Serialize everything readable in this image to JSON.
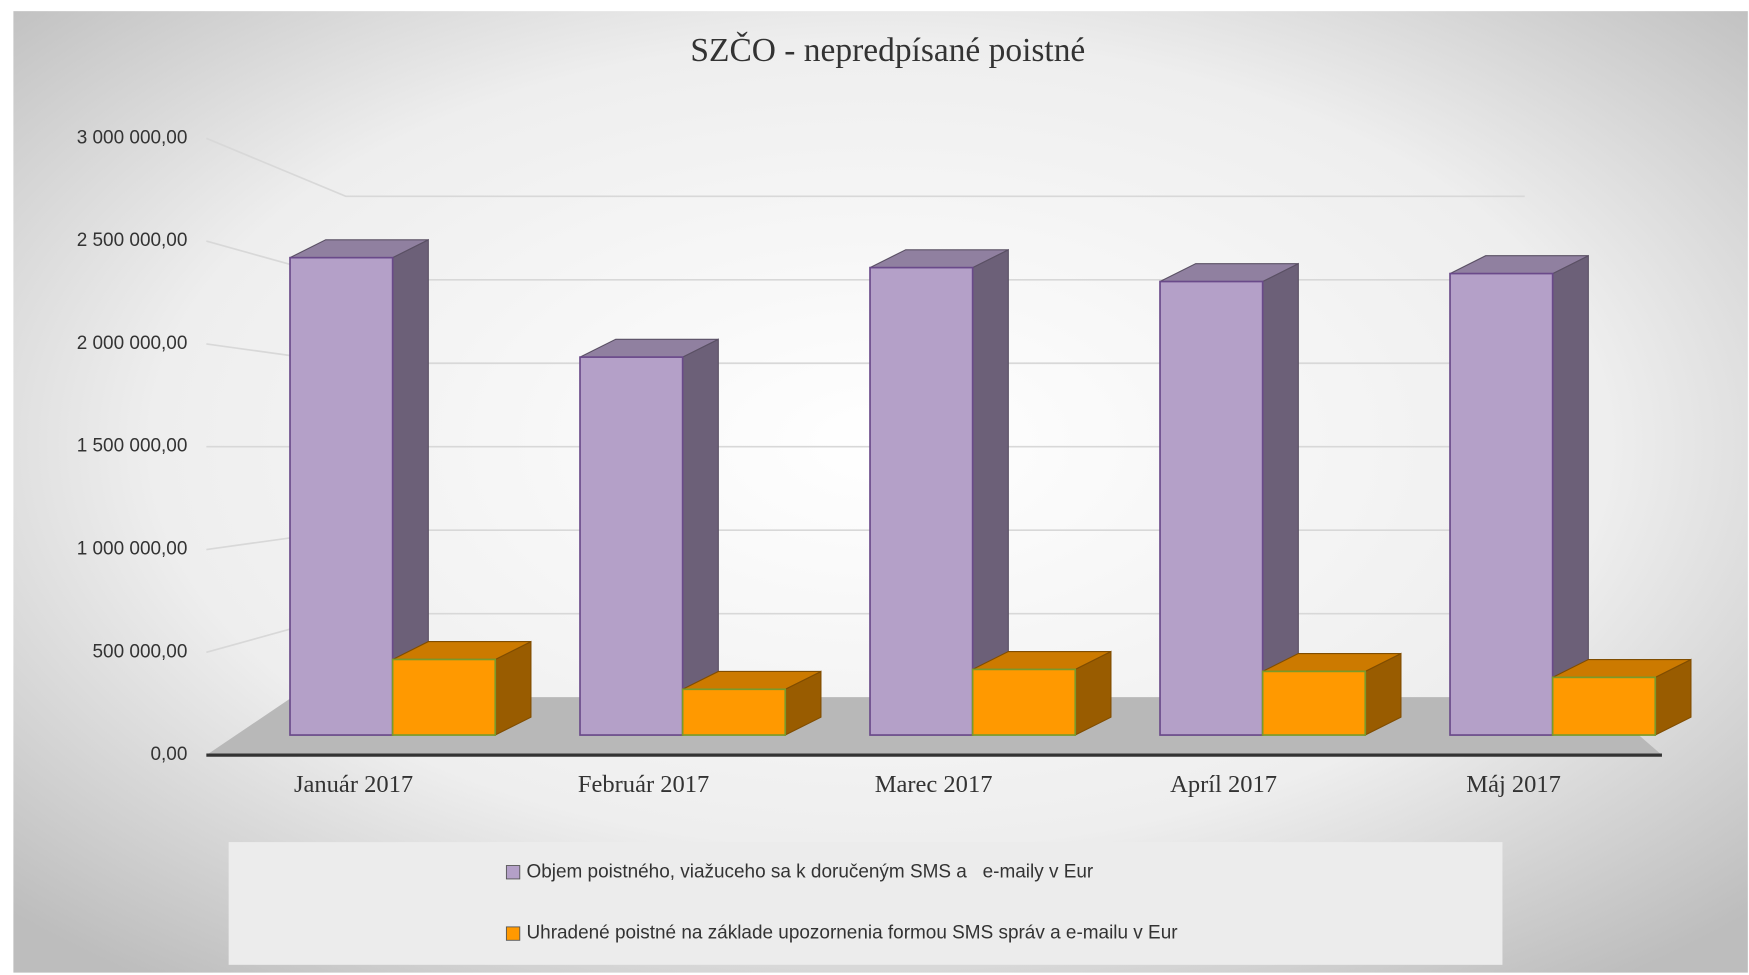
{
  "chart_data": {
    "type": "bar3d",
    "title": "SZČO - nepredpísané poistné",
    "categories": [
      "Január 2017",
      "Február 2017",
      "Marec 2017",
      "Apríl 2017",
      "Máj 2017"
    ],
    "series": [
      {
        "name": "Objem poistného, viažuceho sa k doručeným SMS a   e-maily v Eur",
        "color": "#b4a0c8",
        "values": [
          2400000,
          1900000,
          2350000,
          2280000,
          2320000
        ]
      },
      {
        "name": "Uhradené poistné na základe upozornenia formou SMS správ a e-mailu v Eur",
        "color": "#ff9900",
        "values": [
          380000,
          230000,
          330000,
          320000,
          290000
        ]
      }
    ],
    "ylim": [
      0,
      3000000
    ],
    "yticks": [
      {
        "value": 0,
        "label": "0,00"
      },
      {
        "value": 500000,
        "label": "500 000,00"
      },
      {
        "value": 1000000,
        "label": "1 000 000,00"
      },
      {
        "value": 1500000,
        "label": "1 500 000,00"
      },
      {
        "value": 2000000,
        "label": "2 000 000,00"
      },
      {
        "value": 2500000,
        "label": "2 500 000,00"
      },
      {
        "value": 3000000,
        "label": "3 000 000,00"
      }
    ],
    "grid": true,
    "legend": "bottom"
  }
}
